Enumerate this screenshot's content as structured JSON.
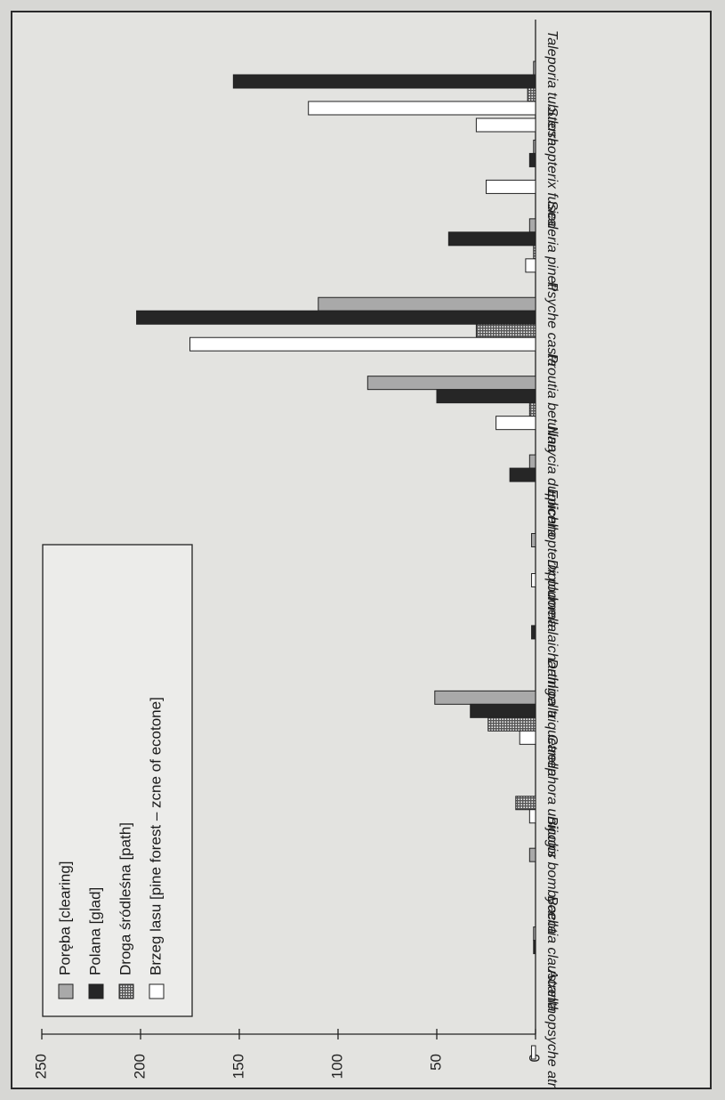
{
  "chart_data": {
    "type": "bar",
    "orientation": "horizontal-rotated",
    "title": "",
    "xlabel": "",
    "ylabel": "",
    "ylim": [
      0,
      250
    ],
    "yticks": [
      0,
      50,
      100,
      150,
      200,
      250
    ],
    "grid": false,
    "legend_position": "top-left",
    "categories": [
      "Acanthopsyche atra",
      "Bacotia claustrella",
      "Bijugis bombycella",
      "Canephora unicolor",
      "Dahlica triquetrella",
      "Diplodoma laichartingella",
      "Epichnopterix plumella",
      "Narycia duplicella",
      "Proutia betulina",
      "Psyche casta",
      "Siederia pineti",
      "Sterrhopterix fusca",
      "Taleporia tubulosa"
    ],
    "series": [
      {
        "name": "Poręba",
        "name_en": "[clearing]",
        "color": "#a9a9a9",
        "pattern": "gray",
        "values": [
          0,
          1,
          3,
          0,
          51,
          0,
          2,
          3,
          85,
          110,
          3,
          1,
          1
        ]
      },
      {
        "name": "Polana",
        "name_en": "[glad]",
        "color": "#262626",
        "pattern": "black",
        "values": [
          0,
          1,
          0,
          0,
          33,
          2,
          0,
          13,
          50,
          202,
          44,
          3,
          153
        ]
      },
      {
        "name": "Droga śródleśna",
        "name_en": "[path]",
        "color": "#b5b5b5",
        "pattern": "grid",
        "values": [
          0,
          0,
          0,
          10,
          24,
          0,
          0,
          0,
          3,
          30,
          1,
          0,
          4
        ]
      },
      {
        "name": "Brzeg lasu",
        "name_en": "[pine forest – zcne of ecotone]",
        "color": "#ffffff",
        "pattern": "white",
        "values": [
          2,
          0,
          0,
          3,
          8,
          0,
          2,
          0,
          20,
          175,
          5,
          25,
          115
        ]
      }
    ],
    "extra_bars": [
      {
        "category": "Taleporia tubulosa",
        "series": "Brzeg lasu",
        "value": 30,
        "note": "small open bar near top of group"
      }
    ]
  }
}
